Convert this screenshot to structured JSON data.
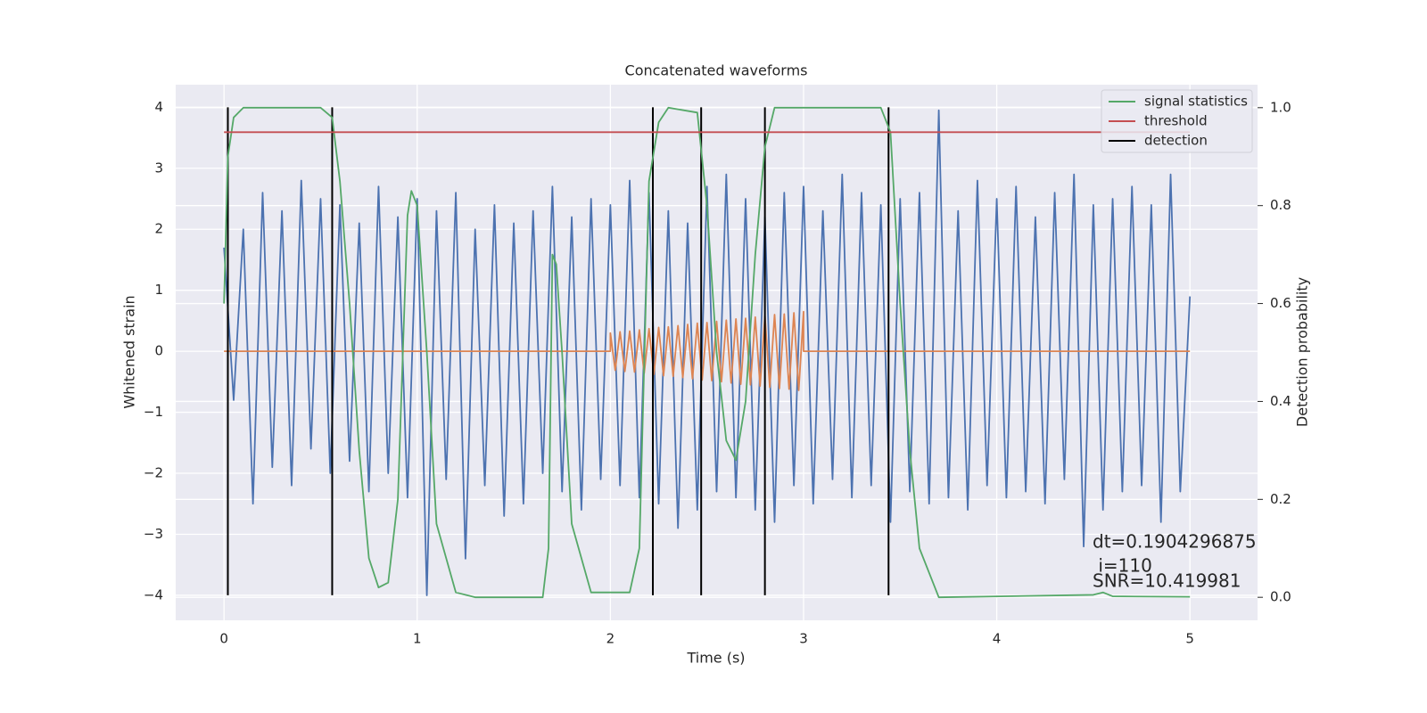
{
  "chart_data": {
    "type": "line",
    "title": "Concatenated waveforms",
    "xlabel": "Time (s)",
    "ylabel": "Whitened strain",
    "y2label": "Detection probability",
    "xlim": [
      -0.25,
      5.35
    ],
    "ylim": [
      -4.41,
      4.37
    ],
    "y2lim": [
      -0.047,
      1.047
    ],
    "xticks": [
      0,
      1,
      2,
      3,
      4,
      5
    ],
    "yticks": [
      {
        "value": -4,
        "label": "−4"
      },
      {
        "value": -3,
        "label": "−3"
      },
      {
        "value": -2,
        "label": "−2"
      },
      {
        "value": -1,
        "label": "−1"
      },
      0,
      1,
      2,
      3,
      4
    ],
    "y2ticks": [
      {
        "value": 0,
        "label": "0.0"
      },
      0.2,
      0.4,
      0.6,
      0.8,
      {
        "value": 1,
        "label": "1.0"
      }
    ],
    "grid": true,
    "legend": "upper right",
    "series": [
      {
        "color": "#4c72b0",
        "x": [
          0,
          0.05,
          0.1,
          0.15,
          0.2,
          0.25,
          0.3,
          0.35,
          0.4,
          0.45,
          0.5,
          0.55,
          0.6,
          0.65,
          0.7,
          0.75,
          0.8,
          0.85,
          0.9,
          0.95,
          1.0,
          1.05,
          1.1,
          1.15,
          1.2,
          1.25,
          1.3,
          1.35,
          1.4,
          1.45,
          1.5,
          1.55,
          1.6,
          1.65,
          1.7,
          1.75,
          1.8,
          1.85,
          1.9,
          1.95,
          2.0,
          2.05,
          2.1,
          2.15,
          2.2,
          2.25,
          2.3,
          2.35,
          2.4,
          2.45,
          2.5,
          2.55,
          2.6,
          2.65,
          2.7,
          2.75,
          2.8,
          2.85,
          2.9,
          2.95,
          3.0,
          3.05,
          3.1,
          3.15,
          3.2,
          3.25,
          3.3,
          3.35,
          3.4,
          3.45,
          3.5,
          3.55,
          3.6,
          3.65,
          3.7,
          3.75,
          3.8,
          3.85,
          3.9,
          3.95,
          4.0,
          4.05,
          4.1,
          4.15,
          4.2,
          4.25,
          4.3,
          4.35,
          4.4,
          4.45,
          4.5,
          4.55,
          4.6,
          4.65,
          4.7,
          4.75,
          4.8,
          4.85,
          4.9,
          4.95,
          5.0
        ],
        "values": [
          1.7,
          -0.8,
          2.0,
          -2.5,
          2.6,
          -1.9,
          2.3,
          -2.2,
          2.8,
          -1.6,
          2.5,
          -2.0,
          2.4,
          -1.8,
          2.1,
          -2.3,
          2.7,
          -2.0,
          2.2,
          -2.4,
          2.5,
          -4.0,
          2.3,
          -2.1,
          2.6,
          -3.4,
          2.0,
          -2.2,
          2.4,
          -2.7,
          2.1,
          -2.5,
          2.3,
          -2.0,
          2.7,
          -2.3,
          2.2,
          -2.6,
          2.5,
          -2.1,
          2.4,
          -2.2,
          2.8,
          -2.4,
          2.6,
          -2.5,
          2.3,
          -2.9,
          2.1,
          -2.6,
          2.7,
          -2.3,
          2.9,
          -2.4,
          2.5,
          -2.6,
          2.2,
          -2.8,
          2.6,
          -2.2,
          2.7,
          -2.5,
          2.3,
          -2.1,
          2.9,
          -2.4,
          2.6,
          -2.2,
          2.4,
          -2.8,
          2.5,
          -2.3,
          2.6,
          -2.5,
          3.95,
          -2.4,
          2.3,
          -2.6,
          2.8,
          -2.2,
          2.5,
          -2.4,
          2.7,
          -2.3,
          2.2,
          -2.5,
          2.6,
          -2.1,
          2.9,
          -3.2,
          2.4,
          -2.6,
          2.5,
          -2.3,
          2.7,
          -2.2,
          2.4,
          -2.8,
          2.9,
          -2.3,
          0.9
        ]
      },
      {
        "color": "#dd8452",
        "x": [
          0,
          2.0,
          2.0,
          2.025,
          2.05,
          2.075,
          2.1,
          2.125,
          2.15,
          2.175,
          2.2,
          2.225,
          2.25,
          2.275,
          2.3,
          2.325,
          2.35,
          2.375,
          2.4,
          2.425,
          2.45,
          2.475,
          2.5,
          2.525,
          2.55,
          2.575,
          2.6,
          2.625,
          2.65,
          2.675,
          2.7,
          2.725,
          2.75,
          2.775,
          2.8,
          2.825,
          2.85,
          2.875,
          2.9,
          2.925,
          2.95,
          2.975,
          3.0,
          3.0,
          5.0
        ],
        "values": [
          0,
          0,
          0.3,
          -0.31,
          0.32,
          -0.33,
          0.33,
          -0.34,
          0.35,
          -0.36,
          0.37,
          -0.38,
          0.39,
          -0.4,
          0.4,
          -0.41,
          0.42,
          -0.43,
          0.44,
          -0.45,
          0.46,
          -0.47,
          0.47,
          -0.48,
          0.49,
          -0.5,
          0.51,
          -0.52,
          0.53,
          -0.54,
          0.54,
          -0.55,
          0.56,
          -0.57,
          0.58,
          -0.59,
          0.6,
          -0.61,
          0.61,
          -0.62,
          0.63,
          -0.64,
          0.65,
          0,
          0
        ]
      },
      {
        "name": "signal statistics",
        "color": "#55a868",
        "axis": "y2",
        "x": [
          0,
          0.02,
          0.05,
          0.1,
          0.5,
          0.56,
          0.6,
          0.65,
          0.7,
          0.75,
          0.8,
          0.85,
          0.9,
          0.95,
          0.97,
          1.0,
          1.05,
          1.1,
          1.2,
          1.3,
          1.65,
          1.68,
          1.7,
          1.72,
          1.75,
          1.8,
          1.9,
          2.1,
          2.15,
          2.2,
          2.25,
          2.3,
          2.45,
          2.5,
          2.55,
          2.6,
          2.65,
          2.7,
          2.75,
          2.8,
          2.85,
          3.4,
          3.45,
          3.5,
          3.55,
          3.6,
          3.7,
          4.5,
          4.55,
          4.6,
          5.0
        ],
        "values": [
          0.6,
          0.9,
          0.98,
          1.0,
          1.0,
          0.98,
          0.85,
          0.6,
          0.3,
          0.08,
          0.02,
          0.03,
          0.2,
          0.78,
          0.83,
          0.8,
          0.5,
          0.15,
          0.01,
          0.0,
          0.0,
          0.1,
          0.7,
          0.68,
          0.5,
          0.15,
          0.01,
          0.01,
          0.1,
          0.85,
          0.97,
          1.0,
          0.99,
          0.8,
          0.5,
          0.32,
          0.28,
          0.4,
          0.7,
          0.92,
          1.0,
          1.0,
          0.95,
          0.6,
          0.3,
          0.1,
          0.0,
          0.005,
          0.01,
          0.002,
          0.001
        ]
      },
      {
        "name": "threshold",
        "color": "#c44e52",
        "axis": "y2",
        "x": [
          0,
          5
        ],
        "values": [
          0.95,
          0.95
        ]
      }
    ],
    "vlines": {
      "name": "detection",
      "color": "#000000",
      "x": [
        0.02,
        0.56,
        2.22,
        2.47,
        2.8,
        3.44
      ],
      "ymin": -4,
      "ymax": 4
    },
    "annotations": [
      "dt=0.1904296875",
      " i=110",
      "SNR=10.419981"
    ]
  }
}
